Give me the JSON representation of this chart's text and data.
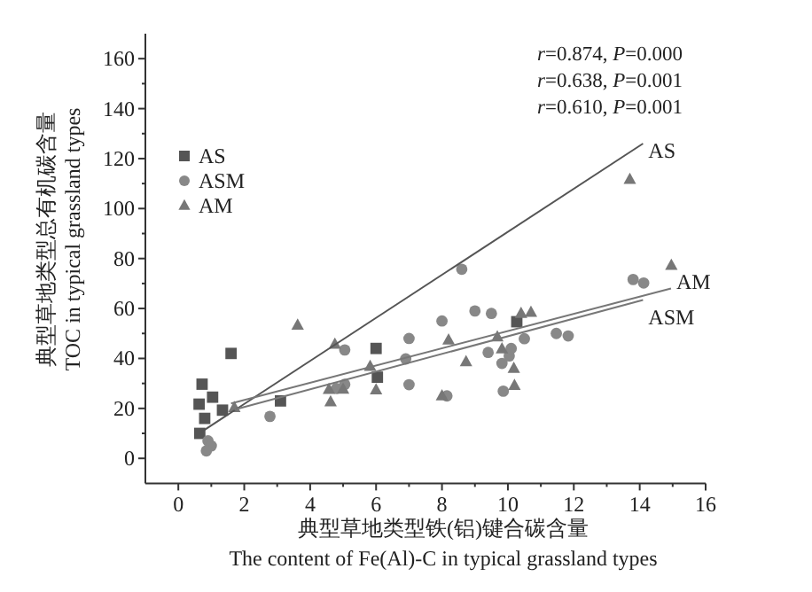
{
  "chart_data": {
    "type": "scatter",
    "xlabel": "典型草地类型铁(铝)键合碳含量\nThe content of Fe(Al)-C in typical grassland types",
    "ylabel": "典型草地类型总有机碳含量\nTOC in typical grassland types",
    "xlim": [
      -1,
      16
    ],
    "ylim": [
      -10,
      170
    ],
    "xticks": [
      0,
      2,
      4,
      6,
      8,
      10,
      12,
      14,
      16
    ],
    "yticks": [
      0,
      20,
      40,
      60,
      80,
      100,
      120,
      140,
      160
    ],
    "legend": "top left",
    "grid": false,
    "series": [
      {
        "name": "AS",
        "marker": "square",
        "color": "#555555",
        "x": [
          0.72,
          0.63,
          1.04,
          0.8,
          1.34,
          1.6,
          3.1,
          6.0,
          6.04,
          10.27,
          0.65
        ],
        "values": [
          29.7,
          21.7,
          24.5,
          16,
          19.3,
          42,
          23,
          44,
          32.5,
          54.7,
          10
        ]
      },
      {
        "name": "ASM",
        "marker": "circle",
        "color": "#888888",
        "x": [
          2.78,
          5.05,
          5.05,
          7.0,
          7.0,
          8.0,
          6.9,
          8.6,
          9.0,
          9.5,
          10.5,
          11.47,
          11.83,
          13.8,
          14.12,
          9.4,
          9.82,
          10.04,
          10.1,
          9.86,
          8.15,
          4.8,
          0.9,
          1.0,
          0.85
        ],
        "values": [
          16.8,
          43.4,
          29.6,
          48,
          29.5,
          55,
          39.8,
          75.7,
          59,
          58,
          47.9,
          50,
          49,
          71.6,
          70.2,
          42.4,
          38,
          41,
          44,
          26.9,
          25,
          28,
          7,
          5,
          3
        ]
      },
      {
        "name": "AM",
        "marker": "triangle",
        "color": "#777777",
        "x": [
          1.7,
          3.62,
          4.75,
          4.57,
          4.62,
          5.0,
          5.82,
          6.0,
          8.0,
          8.2,
          8.73,
          9.68,
          9.82,
          10.4,
          10.7,
          10.18,
          10.2,
          14.96,
          13.7
        ],
        "values": [
          20.3,
          53.3,
          45.7,
          27.6,
          22.6,
          27.7,
          36.8,
          27.4,
          25,
          47.4,
          38.7,
          48.6,
          43.8,
          58,
          58.5,
          36,
          29.2,
          77.3,
          111.7
        ]
      },
      {
        "name": "AS",
        "type": "line",
        "color": "#555555",
        "x": [
          0.7,
          14.1
        ],
        "values": [
          10.6,
          126
        ]
      },
      {
        "name": "AM",
        "type": "line",
        "color": "#777777",
        "x": [
          1.6,
          14.95
        ],
        "values": [
          22,
          68
        ]
      },
      {
        "name": "ASM",
        "type": "line",
        "color": "#777777",
        "x": [
          1.7,
          14.1
        ],
        "values": [
          19.5,
          63.4
        ]
      }
    ],
    "annotations": [
      "*r*=0.874, *P*=0.000",
      "*r*=0.638, *P*=0.001",
      "*r*=0.610, *P*=0.001"
    ]
  }
}
